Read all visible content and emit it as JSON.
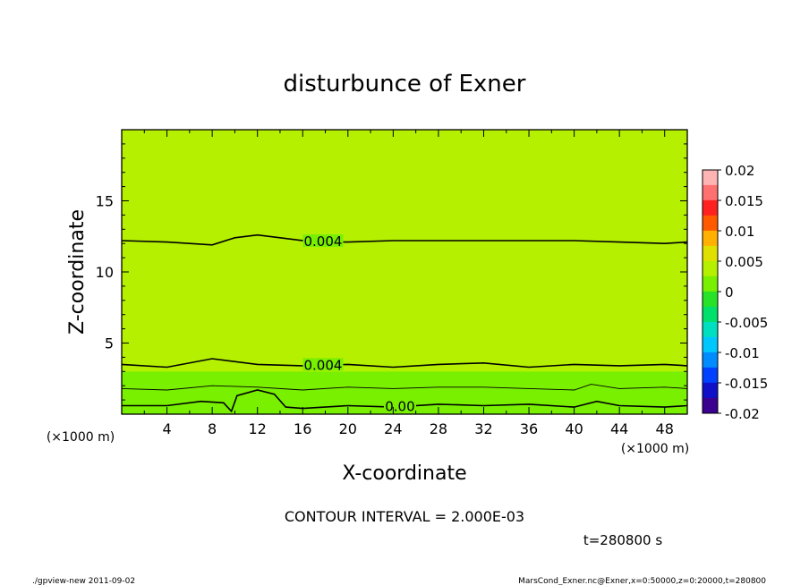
{
  "chart_data": {
    "type": "contour",
    "title": "disturbunce of Exner",
    "xlabel": "X-coordinate",
    "ylabel": "Z-coordinate",
    "x_unit_label": "(×1000 m)",
    "y_unit_label": "(×1000 m)",
    "xlim": [
      0,
      50
    ],
    "ylim": [
      0,
      20
    ],
    "x_ticks": [
      4,
      8,
      12,
      16,
      20,
      24,
      28,
      32,
      36,
      40,
      44,
      48
    ],
    "y_ticks": [
      5,
      10,
      15
    ],
    "colorbar": {
      "ticks": [
        "0.02",
        "0.015",
        "0.01",
        "0.005",
        "0",
        "-0.005",
        "-0.01",
        "-0.015",
        "-0.02"
      ],
      "colors": [
        "#ffb4b4",
        "#ff7070",
        "#ff2020",
        "#ff5a00",
        "#ffb000",
        "#e0e000",
        "#b4f000",
        "#78f000",
        "#28e228",
        "#00e06a",
        "#00e0c0",
        "#00c8ff",
        "#008cff",
        "#0040ff",
        "#1010c8",
        "#3a0090"
      ]
    },
    "field": {
      "surface_value": 0.0,
      "layers": [
        {
          "z": 0.0,
          "value": 0.0
        },
        {
          "z": 1.0,
          "value": 0.001
        },
        {
          "z": 2.0,
          "value": 0.002
        },
        {
          "z": 3.0,
          "value": 0.003
        },
        {
          "z": 4.0,
          "value": 0.004
        },
        {
          "z": 6.0,
          "value": 0.0048
        },
        {
          "z": 8.0,
          "value": 0.0046
        },
        {
          "z": 12.0,
          "value": 0.004
        },
        {
          "z": 17.0,
          "value": 0.0032
        },
        {
          "z": 20.0,
          "value": 0.0028
        }
      ]
    },
    "contours": [
      {
        "level": 0.004,
        "label": "0.004",
        "points": [
          [
            0,
            12.2
          ],
          [
            4,
            12.1
          ],
          [
            8,
            11.9
          ],
          [
            10,
            12.4
          ],
          [
            12,
            12.6
          ],
          [
            14,
            12.4
          ],
          [
            17,
            12.1
          ],
          [
            20,
            12.1
          ],
          [
            24,
            12.2
          ],
          [
            28,
            12.2
          ],
          [
            32,
            12.2
          ],
          [
            36,
            12.2
          ],
          [
            40,
            12.2
          ],
          [
            44,
            12.1
          ],
          [
            48,
            12.0
          ],
          [
            50,
            12.1
          ]
        ]
      },
      {
        "level": 0.004,
        "label": "0.004",
        "points": [
          [
            0,
            3.5
          ],
          [
            4,
            3.3
          ],
          [
            8,
            3.9
          ],
          [
            12,
            3.5
          ],
          [
            16,
            3.4
          ],
          [
            20,
            3.5
          ],
          [
            24,
            3.3
          ],
          [
            28,
            3.5
          ],
          [
            32,
            3.6
          ],
          [
            36,
            3.3
          ],
          [
            40,
            3.5
          ],
          [
            44,
            3.4
          ],
          [
            48,
            3.5
          ],
          [
            50,
            3.4
          ]
        ]
      },
      {
        "level": 0.002,
        "label": "",
        "points": [
          [
            0,
            1.8
          ],
          [
            4,
            1.7
          ],
          [
            8,
            2.0
          ],
          [
            12,
            1.9
          ],
          [
            16,
            1.7
          ],
          [
            20,
            1.9
          ],
          [
            24,
            1.8
          ],
          [
            28,
            1.9
          ],
          [
            32,
            1.9
          ],
          [
            36,
            1.8
          ],
          [
            40,
            1.7
          ],
          [
            41.5,
            2.1
          ],
          [
            44,
            1.8
          ],
          [
            48,
            1.9
          ],
          [
            50,
            1.8
          ]
        ]
      },
      {
        "level": 0.0,
        "label": "0.00",
        "points": [
          [
            0,
            0.6
          ],
          [
            4,
            0.6
          ],
          [
            7,
            0.9
          ],
          [
            9,
            0.8
          ],
          [
            9.7,
            0.2
          ],
          [
            10.2,
            1.3
          ],
          [
            12,
            1.7
          ],
          [
            13.5,
            1.4
          ],
          [
            14.5,
            0.5
          ],
          [
            16,
            0.4
          ],
          [
            20,
            0.6
          ],
          [
            24,
            0.5
          ],
          [
            28,
            0.7
          ],
          [
            32,
            0.6
          ],
          [
            36,
            0.7
          ],
          [
            40,
            0.5
          ],
          [
            42,
            0.9
          ],
          [
            44,
            0.6
          ],
          [
            48,
            0.5
          ],
          [
            50,
            0.6
          ]
        ]
      }
    ]
  },
  "annotations": {
    "contour_interval": "CONTOUR INTERVAL = 2.000E-03",
    "time": "t=280800 s",
    "footer_left": "./gpview-new  2011-09-02",
    "footer_right": "MarsCond_Exner.nc@Exner,x=0:50000,z=0:20000,t=280800"
  }
}
